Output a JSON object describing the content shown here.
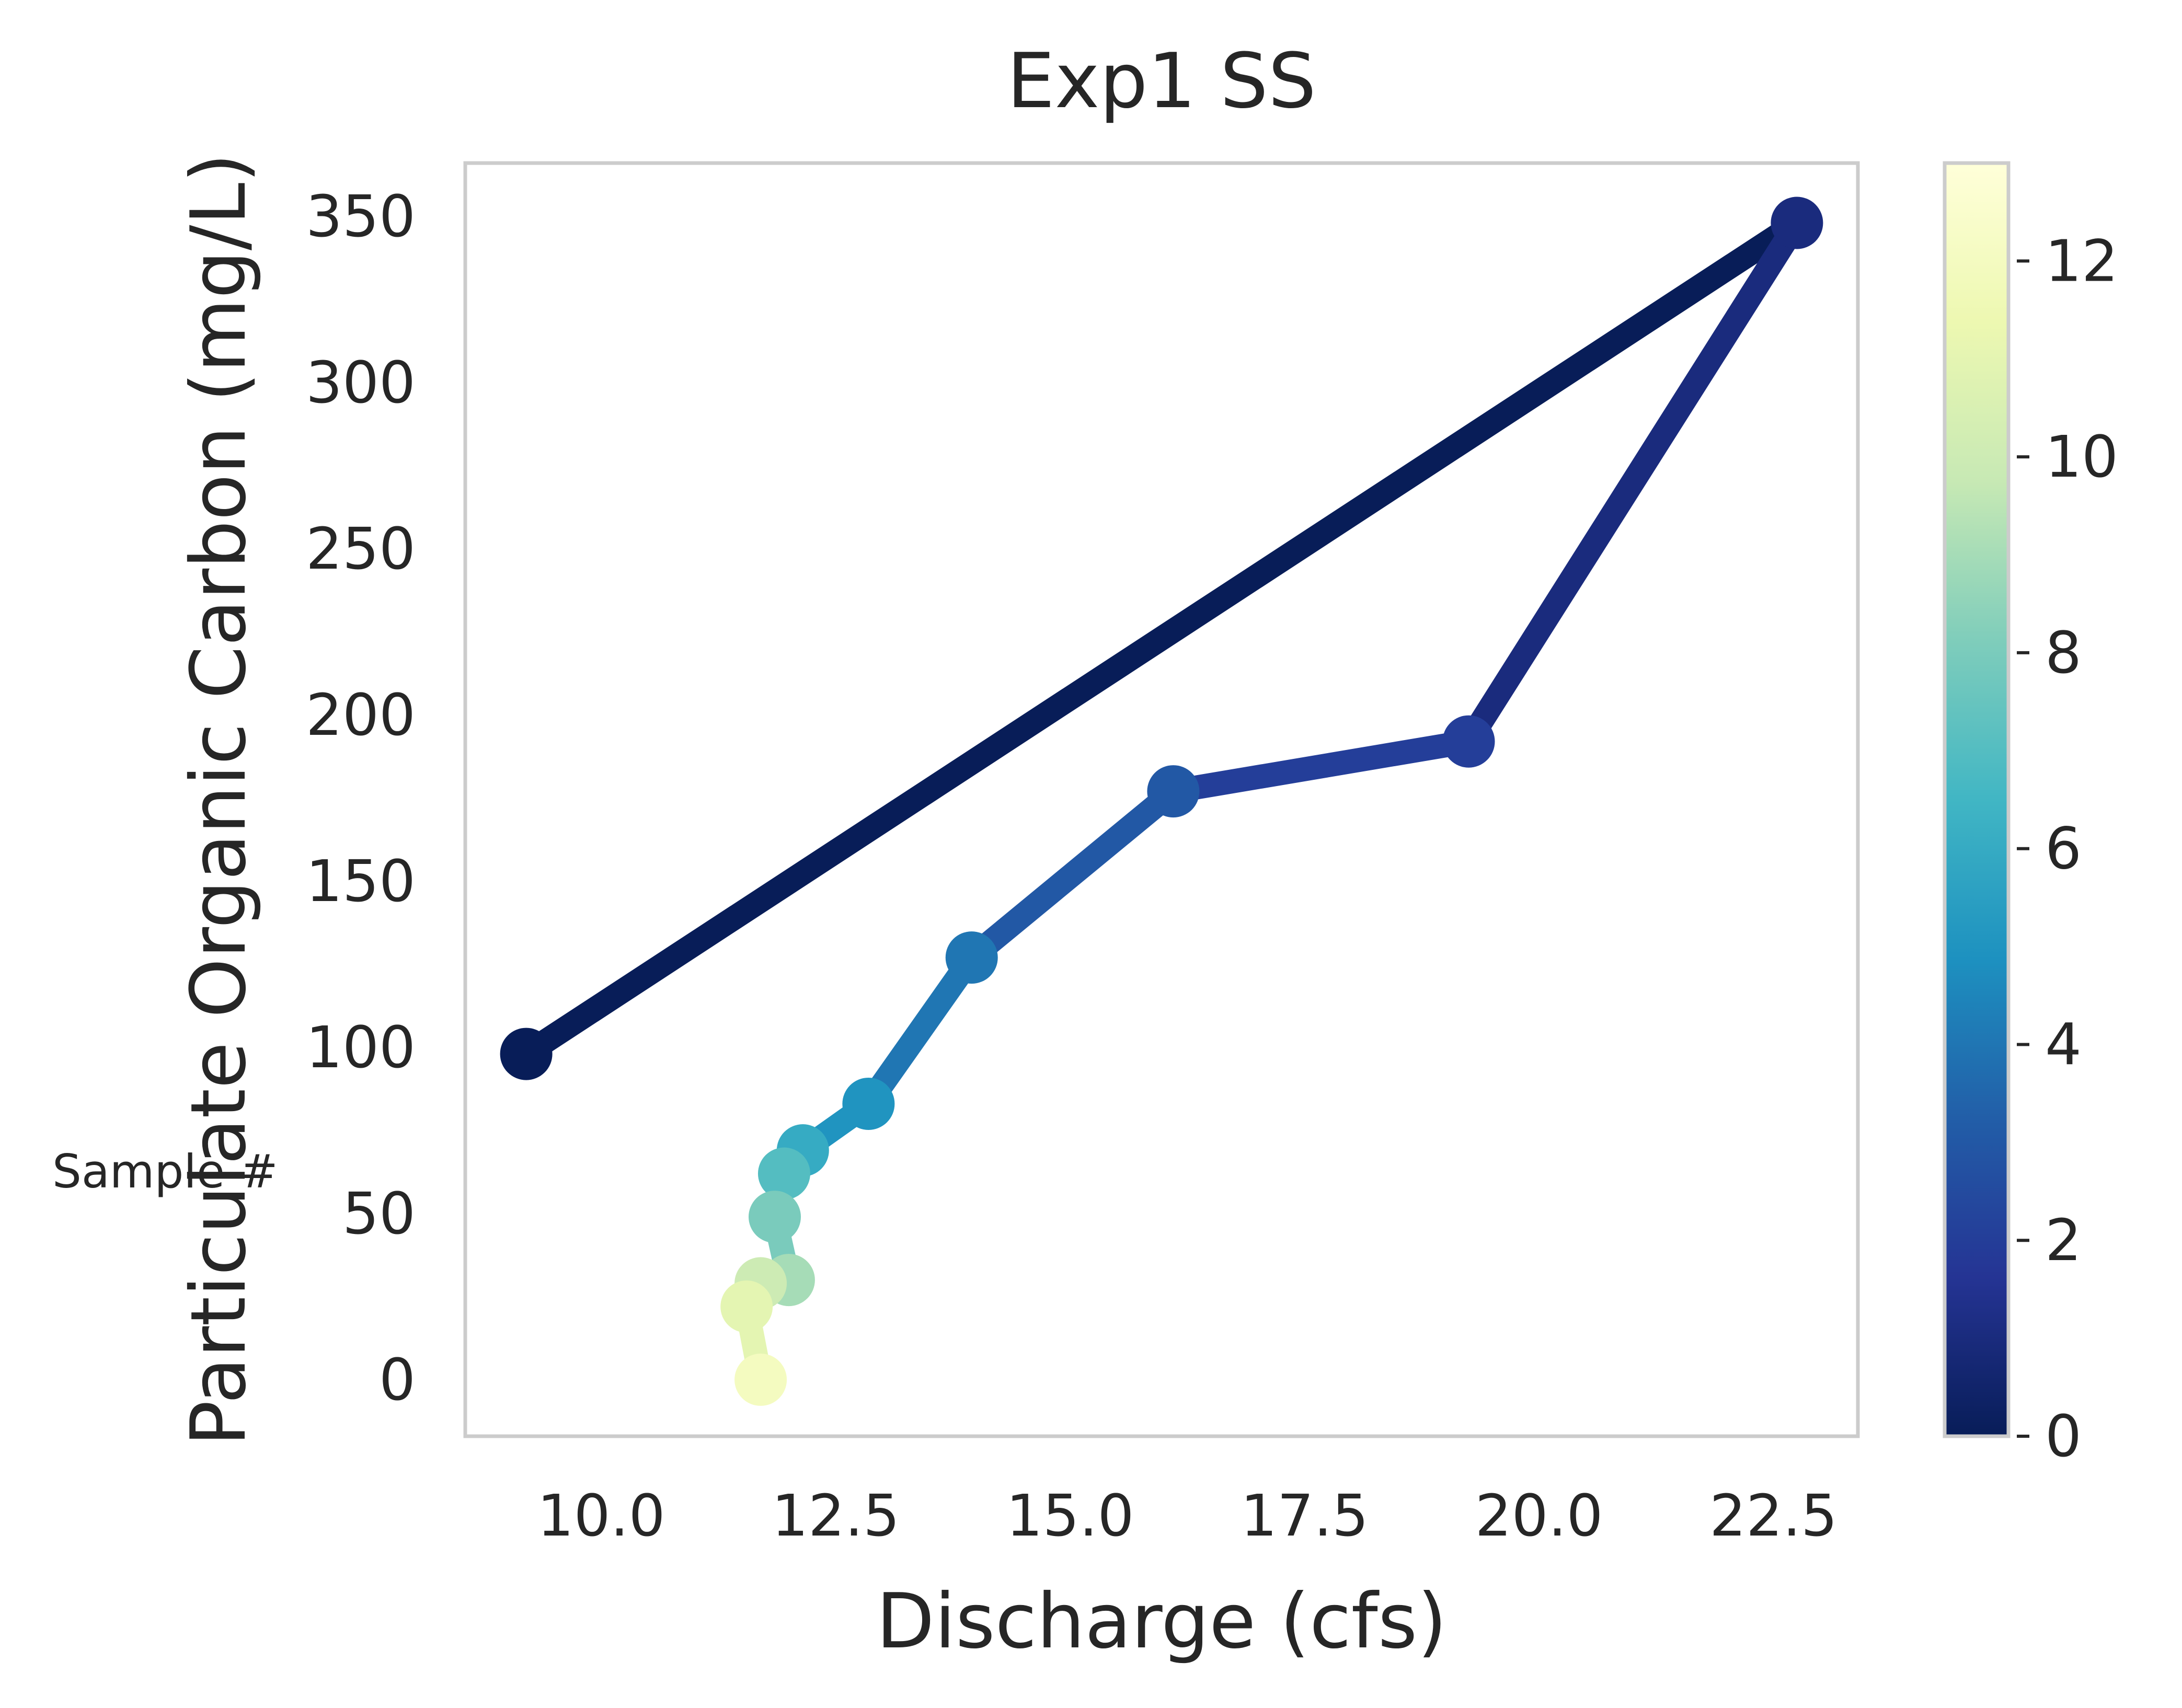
{
  "chart_data": {
    "type": "line",
    "title": "Exp1 SS",
    "xlabel": "Discharge (cfs)",
    "ylabel": "Particulate Organic Carbon (mg/L)",
    "colorbar_label": "Sample #",
    "colormap": "YlGnBu",
    "xlim": [
      8.55,
      23.4
    ],
    "ylim": [
      -17,
      366
    ],
    "xticks": [
      "10.0",
      "12.5",
      "15.0",
      "17.5",
      "20.0",
      "22.5"
    ],
    "yticks": [
      "0",
      "50",
      "100",
      "150",
      "200",
      "250",
      "300",
      "350"
    ],
    "colorbar_ticks": [
      "0",
      "2",
      "4",
      "6",
      "8",
      "10",
      "12"
    ],
    "colorbar_range": [
      0,
      13
    ],
    "grid": false,
    "series": [
      {
        "points": [
          {
            "sample": 0,
            "x": 9.2,
            "y": 98
          },
          {
            "sample": 1,
            "x": 22.75,
            "y": 348
          },
          {
            "sample": 2,
            "x": 19.25,
            "y": 192
          },
          {
            "sample": 3,
            "x": 16.1,
            "y": 177
          },
          {
            "sample": 4,
            "x": 13.95,
            "y": 127
          },
          {
            "sample": 5,
            "x": 12.85,
            "y": 83
          },
          {
            "sample": 6,
            "x": 12.15,
            "y": 69
          },
          {
            "sample": 7,
            "x": 11.95,
            "y": 62
          },
          {
            "sample": 8,
            "x": 11.85,
            "y": 49
          },
          {
            "sample": 9,
            "x": 12.0,
            "y": 30
          },
          {
            "sample": 10,
            "x": 11.7,
            "y": 29
          },
          {
            "sample": 11,
            "x": 11.55,
            "y": 22
          },
          {
            "sample": 12,
            "x": 11.7,
            "y": 0
          }
        ]
      }
    ]
  }
}
